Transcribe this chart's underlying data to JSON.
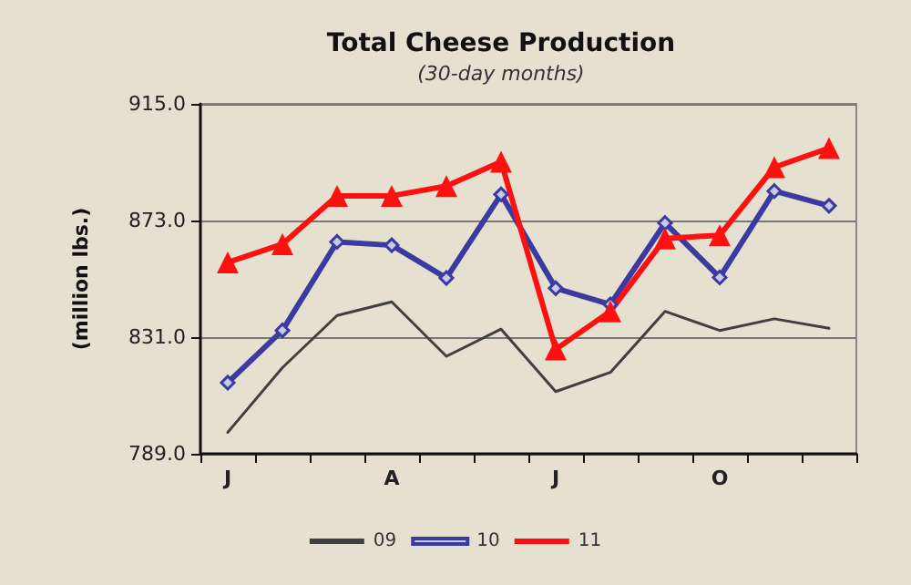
{
  "chart_data": {
    "type": "line",
    "title": "Total Cheese Production",
    "subtitle": "(30-day months)",
    "ylabel": "(million lbs.)",
    "categories": [
      "J",
      null,
      null,
      "A",
      null,
      null,
      "J",
      null,
      null,
      "O",
      null,
      null
    ],
    "series": [
      {
        "name": "09",
        "color": "#404040",
        "marker": "none",
        "values": [
          796.7,
          820.0,
          838.8,
          843.7,
          824.1,
          833.9,
          811.4,
          818.3,
          840.3,
          833.4,
          837.6,
          834.2
        ]
      },
      {
        "name": "10",
        "color": "#3a3aa0",
        "marker": "diamond",
        "values": [
          814.6,
          833.4,
          865.3,
          864.1,
          852.3,
          882.4,
          848.6,
          842.8,
          872.1,
          852.5,
          883.6,
          878.3
        ]
      },
      {
        "name": "11",
        "color": "#ff1010",
        "marker": "triangle",
        "values": [
          857.9,
          864.5,
          881.9,
          881.9,
          885.4,
          894.2,
          826.6,
          840.3,
          866.5,
          867.7,
          892.2,
          899.1
        ]
      }
    ],
    "ylim": [
      789,
      915
    ],
    "yticks": [
      {
        "value": 789,
        "label": "789.0"
      },
      {
        "value": 831,
        "label": "831.0"
      },
      {
        "value": 873,
        "label": "873.0"
      },
      {
        "value": 915,
        "label": "915.0"
      }
    ],
    "grid": "y",
    "legend": "bottom"
  }
}
